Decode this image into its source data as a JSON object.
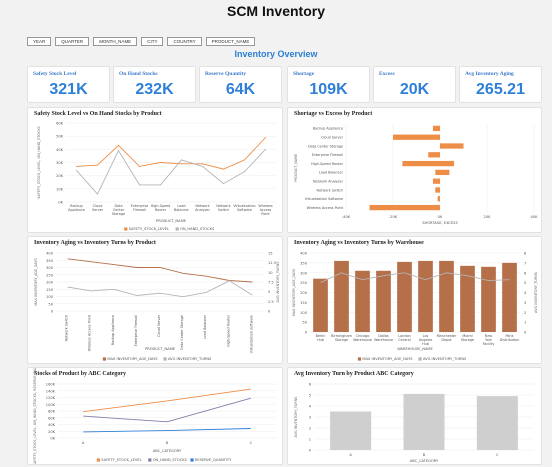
{
  "header": {
    "title": "SCM Inventory",
    "subtitle": "Inventory Overview"
  },
  "filters": [
    "YEAR",
    "QUARTER",
    "MONTH_NAME",
    "CITY",
    "COUNTRY",
    "PRODUCT_NAME"
  ],
  "kpis": [
    {
      "label": "Safety Stock Level",
      "value": "321K"
    },
    {
      "label": "On Hand Stocks",
      "value": "232K"
    },
    {
      "label": "Reserve Quantity",
      "value": "64K"
    },
    {
      "label": "Shortage",
      "value": "109K"
    },
    {
      "label": "Excess",
      "value": "20K"
    },
    {
      "label": "Avg Inventory Aging",
      "value": "265.21"
    }
  ],
  "colors": {
    "accent": "#2f7fd8",
    "orange": "#ee8d46",
    "gray": "#b5b5b5",
    "brown": "#b5704a",
    "purple": "#8a7aa8"
  },
  "chart_data": [
    {
      "type": "line",
      "title": "Safety Stock Level vs On Hand Stocks by Product",
      "xlabel": "PRODUCT_NAME",
      "ylabel": "SAFETY_STOCK_LEVEL, ON_HAND_STOCKS",
      "categories": [
        "Backup Appliance",
        "Cloud Server",
        "Data Center Storage",
        "Enterprise Firewall",
        "High-Speed Router",
        "Load Balancer",
        "Network Analyzer",
        "Network Switch",
        "Virtualization Software",
        "Wireless Access Point"
      ],
      "yticks": [
        "0K",
        "10K",
        "20K",
        "30K",
        "40K",
        "50K",
        "60K"
      ],
      "ylim": [
        0,
        60
      ],
      "series": [
        {
          "name": "SAFETY_STOCK_LEVEL",
          "values": [
            27,
            28,
            43,
            27,
            30,
            29,
            29,
            25,
            32,
            49
          ]
        },
        {
          "name": "ON_HAND_STOCKS",
          "values": [
            24,
            6,
            39,
            13,
            13,
            32,
            27,
            14,
            23,
            40
          ]
        }
      ],
      "legend": "bottom"
    },
    {
      "type": "bar",
      "title": "Shortage vs Excess by Product",
      "ylabel": "PRODUCT_NAME",
      "xlabel": "SHORTAGE, EXCESS",
      "categories": [
        "Backup Appliance",
        "Cloud Server",
        "Data Center Storage",
        "Enterprise Firewall",
        "High-Speed Router",
        "Load Balancer",
        "Network Analyzer",
        "Network Switch",
        "Virtualization Software",
        "Wireless Access Point"
      ],
      "xticks": [
        "-40K",
        "-20K",
        "0K",
        "20K",
        "40K"
      ],
      "xlim": [
        -40,
        40
      ],
      "series": [
        {
          "name": "SHORTAGE",
          "values": [
            -3,
            -20,
            0,
            -5,
            -16,
            -2,
            -3,
            -2,
            -1,
            -30
          ]
        },
        {
          "name": "EXCESS",
          "values": [
            0,
            0,
            10,
            0,
            6,
            4,
            0,
            0,
            0,
            0
          ]
        }
      ]
    },
    {
      "type": "line",
      "title": "Inventory Aging vs Inventory Turns by Product",
      "xlabel": "PRODUCT_NAME",
      "ylabel": "MAX INVENTORY_AGE_DAYS",
      "y2label": "AVG INVENTORY_TURNS",
      "categories": [
        "Network Switch",
        "Wireless Access Point",
        "Backup Appliance",
        "Enterprise Firewall",
        "Cloud Server",
        "Data Center Storage",
        "Load Balancer",
        "High-Speed Router",
        "Virtualization Software"
      ],
      "yticks": [
        "0",
        "50",
        "100",
        "150",
        "200",
        "250",
        "300",
        "350",
        "400"
      ],
      "y2ticks": [
        "0",
        "2.5",
        "5",
        "7.5",
        "10",
        "12.5",
        "15"
      ],
      "ylim": [
        0,
        400
      ],
      "y2lim": [
        0,
        15
      ],
      "series": [
        {
          "name": "MAX INVENTORY_AGE_DAYS",
          "axis": "left",
          "values": [
            360,
            340,
            320,
            300,
            300,
            260,
            240,
            210,
            200
          ]
        },
        {
          "name": "AVG INVENTORY_TURNS",
          "axis": "right",
          "values": [
            6.2,
            5.2,
            5.6,
            4.0,
            4.6,
            3.7,
            4.8,
            7.8,
            4.1
          ]
        }
      ],
      "legend": "bottom"
    },
    {
      "type": "bar",
      "title": "Inventory Aging vs Inventory Turns by Warehouse",
      "xlabel": "WAREHOUSE_NAME",
      "ylabel": "MAX INVENTORY_AGE_DAYS",
      "y2label": "AVG INVENTORY_TURNS",
      "categories": [
        "Berlin Hub",
        "Birmingham Storage",
        "Chicago Warehouse",
        "Dallas Warehouse",
        "London Central",
        "Los Angeles Hub",
        "Manchester Depot",
        "Miami Storage",
        "New York Facility",
        "Paris Distribution"
      ],
      "yticks": [
        "0",
        "50",
        "100",
        "150",
        "200",
        "250",
        "300",
        "350",
        "400"
      ],
      "y2ticks": [
        "0",
        "1",
        "2",
        "3",
        "4",
        "5",
        "6",
        "7",
        "8"
      ],
      "ylim": [
        0,
        400
      ],
      "y2lim": [
        0,
        8
      ],
      "series": [
        {
          "name": "MAX INVENTORY_AGE_DAYS",
          "axis": "left",
          "values": [
            270,
            360,
            310,
            310,
            355,
            360,
            360,
            335,
            330,
            350
          ]
        },
        {
          "name": "AVG INVENTORY_TURNS",
          "axis": "right",
          "values": [
            5.0,
            6.0,
            5.3,
            5.7,
            6.0,
            5.3,
            6.0,
            5.7,
            5.2,
            5.3
          ]
        }
      ],
      "legend": "bottom"
    },
    {
      "type": "line",
      "title": "Stocks of Product by ABC Category",
      "xlabel": "ABC_CATEGORY",
      "ylabel": "SAFETY_STOCK_LEVEL, ON_HAND_STOCKS, RESERVE_QUANTITY",
      "categories": [
        "A",
        "B",
        "C"
      ],
      "yticks": [
        "0K",
        "20K",
        "40K",
        "60K",
        "80K",
        "100K",
        "120K",
        "140K",
        "160K"
      ],
      "ylim": [
        0,
        160
      ],
      "series": [
        {
          "name": "SAFETY_STOCK_LEVEL",
          "values": [
            78,
            110,
            145
          ]
        },
        {
          "name": "ON_HAND_STOCKS",
          "values": [
            65,
            48,
            118
          ]
        },
        {
          "name": "RESERVE_QUANTITY",
          "values": [
            18,
            22,
            28
          ]
        }
      ],
      "legend": "bottom"
    },
    {
      "type": "bar",
      "title": "Avg Inventory Turn by Product ABC Category",
      "xlabel": "ABC_CATEGORY",
      "ylabel": "AVG INVENTORY_TURNS",
      "categories": [
        "A",
        "B",
        "C"
      ],
      "yticks": [
        "0",
        "1",
        "2",
        "3",
        "4",
        "5",
        "6"
      ],
      "ylim": [
        0,
        6
      ],
      "values": [
        3.5,
        5.1,
        4.9
      ]
    }
  ]
}
